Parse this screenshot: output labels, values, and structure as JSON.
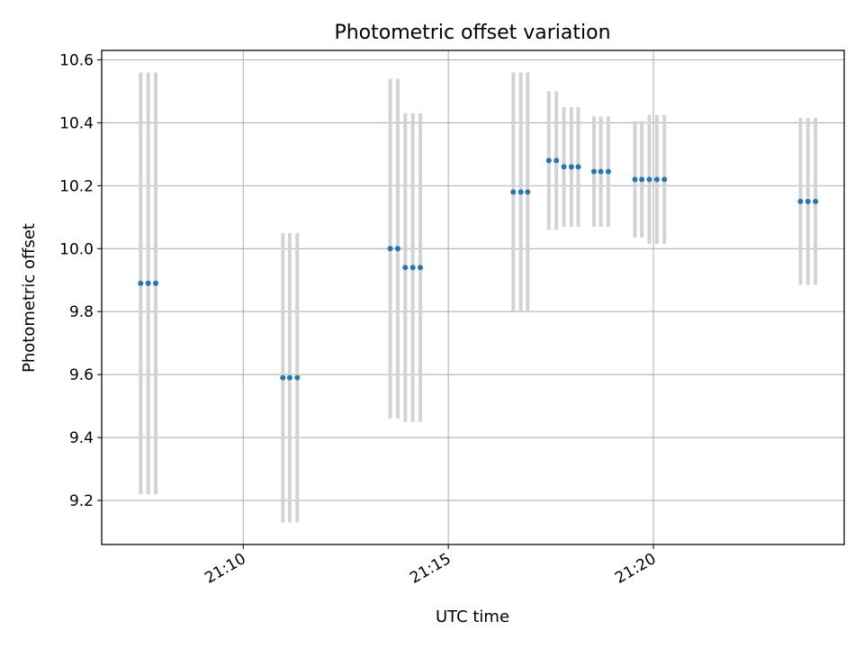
{
  "chart_data": {
    "type": "scatter",
    "title": "Photometric offset variation",
    "xlabel": "UTC time",
    "ylabel": "Photometric offset",
    "grid": true,
    "xlim": [
      "21:06:33",
      "21:24:39"
    ],
    "ylim": [
      9.06,
      10.63
    ],
    "x_ticks": [
      "21:10",
      "21:15",
      "21:20"
    ],
    "y_ticks": [
      9.2,
      9.4,
      9.6,
      9.8,
      10.0,
      10.2,
      10.4,
      10.6
    ],
    "marker_color": "#1f77b4",
    "errorbar_color": "#d3d3d3",
    "points": [
      {
        "x": "21:07:30",
        "y": 9.89,
        "err": 0.67
      },
      {
        "x": "21:07:41",
        "y": 9.89,
        "err": 0.67
      },
      {
        "x": "21:07:52",
        "y": 9.89,
        "err": 0.67
      },
      {
        "x": "21:10:58",
        "y": 9.59,
        "err": 0.46
      },
      {
        "x": "21:11:08",
        "y": 9.59,
        "err": 0.46
      },
      {
        "x": "21:11:19",
        "y": 9.59,
        "err": 0.46
      },
      {
        "x": "21:13:35",
        "y": 10.0,
        "err": 0.54
      },
      {
        "x": "21:13:46",
        "y": 10.0,
        "err": 0.54
      },
      {
        "x": "21:13:57",
        "y": 9.94,
        "err": 0.49
      },
      {
        "x": "21:14:08",
        "y": 9.94,
        "err": 0.49
      },
      {
        "x": "21:14:19",
        "y": 9.94,
        "err": 0.49
      },
      {
        "x": "21:16:35",
        "y": 10.18,
        "err": 0.38
      },
      {
        "x": "21:16:46",
        "y": 10.18,
        "err": 0.38
      },
      {
        "x": "21:16:56",
        "y": 10.18,
        "err": 0.38
      },
      {
        "x": "21:17:27",
        "y": 10.28,
        "err": 0.22
      },
      {
        "x": "21:17:38",
        "y": 10.28,
        "err": 0.22
      },
      {
        "x": "21:17:49",
        "y": 10.26,
        "err": 0.19
      },
      {
        "x": "21:18:00",
        "y": 10.26,
        "err": 0.19
      },
      {
        "x": "21:18:10",
        "y": 10.26,
        "err": 0.19
      },
      {
        "x": "21:18:33",
        "y": 10.245,
        "err": 0.175
      },
      {
        "x": "21:18:43",
        "y": 10.245,
        "err": 0.175
      },
      {
        "x": "21:18:54",
        "y": 10.245,
        "err": 0.175
      },
      {
        "x": "21:19:33",
        "y": 10.22,
        "err": 0.185
      },
      {
        "x": "21:19:43",
        "y": 10.22,
        "err": 0.185
      },
      {
        "x": "21:19:54",
        "y": 10.22,
        "err": 0.205
      },
      {
        "x": "21:20:05",
        "y": 10.22,
        "err": 0.205
      },
      {
        "x": "21:20:16",
        "y": 10.22,
        "err": 0.205
      },
      {
        "x": "21:23:35",
        "y": 10.15,
        "err": 0.265
      },
      {
        "x": "21:23:46",
        "y": 10.15,
        "err": 0.265
      },
      {
        "x": "21:23:57",
        "y": 10.15,
        "err": 0.265
      }
    ]
  }
}
